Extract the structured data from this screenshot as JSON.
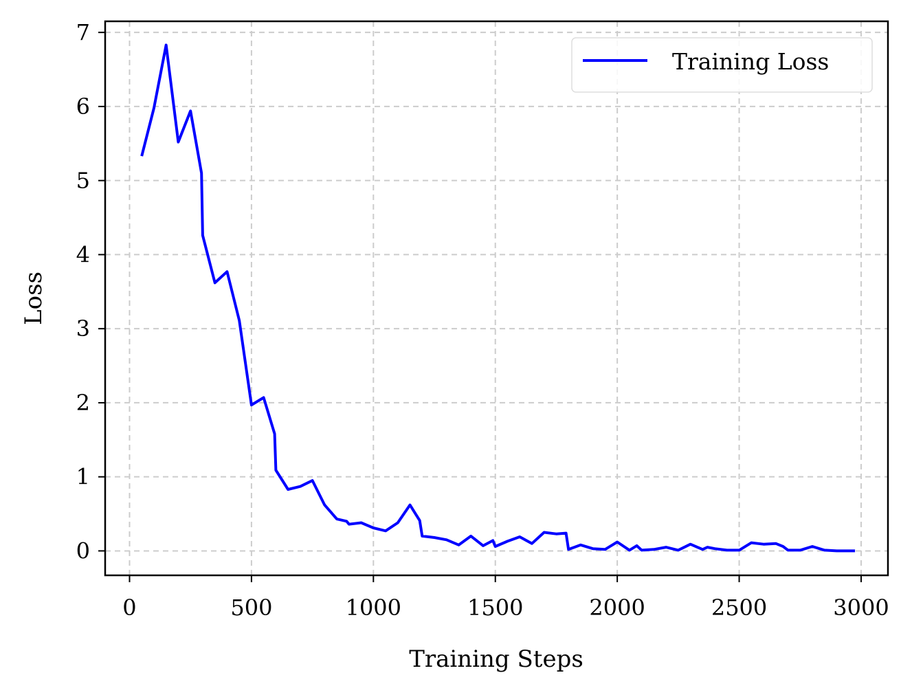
{
  "chart_data": {
    "type": "line",
    "title": "",
    "xlabel": "Training Steps",
    "ylabel": "Loss",
    "xlim": [
      -100,
      3110
    ],
    "ylim": [
      -0.33,
      7.15
    ],
    "grid": true,
    "legend_placement": "top-right",
    "x_ticks": [
      0,
      500,
      1000,
      1500,
      2000,
      2500,
      3000
    ],
    "x_tick_labels": [
      "0",
      "500",
      "1000",
      "1500",
      "2000",
      "2500",
      "3000"
    ],
    "y_ticks": [
      0,
      1,
      2,
      3,
      4,
      5,
      6,
      7
    ],
    "y_tick_labels": [
      "0",
      "1",
      "2",
      "3",
      "4",
      "5",
      "6",
      "7"
    ],
    "series": [
      {
        "name": "Training Loss",
        "color": "#0000ff",
        "x": [
          50,
          100,
          150,
          200,
          250,
          295,
          300,
          350,
          400,
          450,
          500,
          550,
          595,
          600,
          650,
          700,
          750,
          800,
          850,
          890,
          900,
          950,
          1000,
          1050,
          1100,
          1150,
          1190,
          1200,
          1250,
          1300,
          1350,
          1400,
          1450,
          1490,
          1500,
          1550,
          1600,
          1650,
          1700,
          1750,
          1790,
          1800,
          1850,
          1900,
          1950,
          2000,
          2050,
          2080,
          2100,
          2150,
          2200,
          2250,
          2300,
          2350,
          2370,
          2400,
          2450,
          2500,
          2550,
          2600,
          2650,
          2680,
          2700,
          2750,
          2800,
          2850,
          2900,
          2950,
          2975
        ],
        "y": [
          5.33,
          5.98,
          6.83,
          5.52,
          5.94,
          5.1,
          4.26,
          3.62,
          3.77,
          3.11,
          1.97,
          2.07,
          1.58,
          1.09,
          0.83,
          0.87,
          0.95,
          0.62,
          0.43,
          0.4,
          0.36,
          0.38,
          0.31,
          0.27,
          0.38,
          0.62,
          0.41,
          0.2,
          0.18,
          0.15,
          0.08,
          0.2,
          0.07,
          0.14,
          0.06,
          0.13,
          0.19,
          0.1,
          0.25,
          0.23,
          0.24,
          0.02,
          0.08,
          0.03,
          0.02,
          0.12,
          0.01,
          0.07,
          0.01,
          0.02,
          0.05,
          0.01,
          0.09,
          0.02,
          0.05,
          0.03,
          0.01,
          0.01,
          0.11,
          0.09,
          0.1,
          0.06,
          0.01,
          0.01,
          0.06,
          0.01,
          0.0,
          0.0,
          0.0
        ]
      }
    ]
  }
}
